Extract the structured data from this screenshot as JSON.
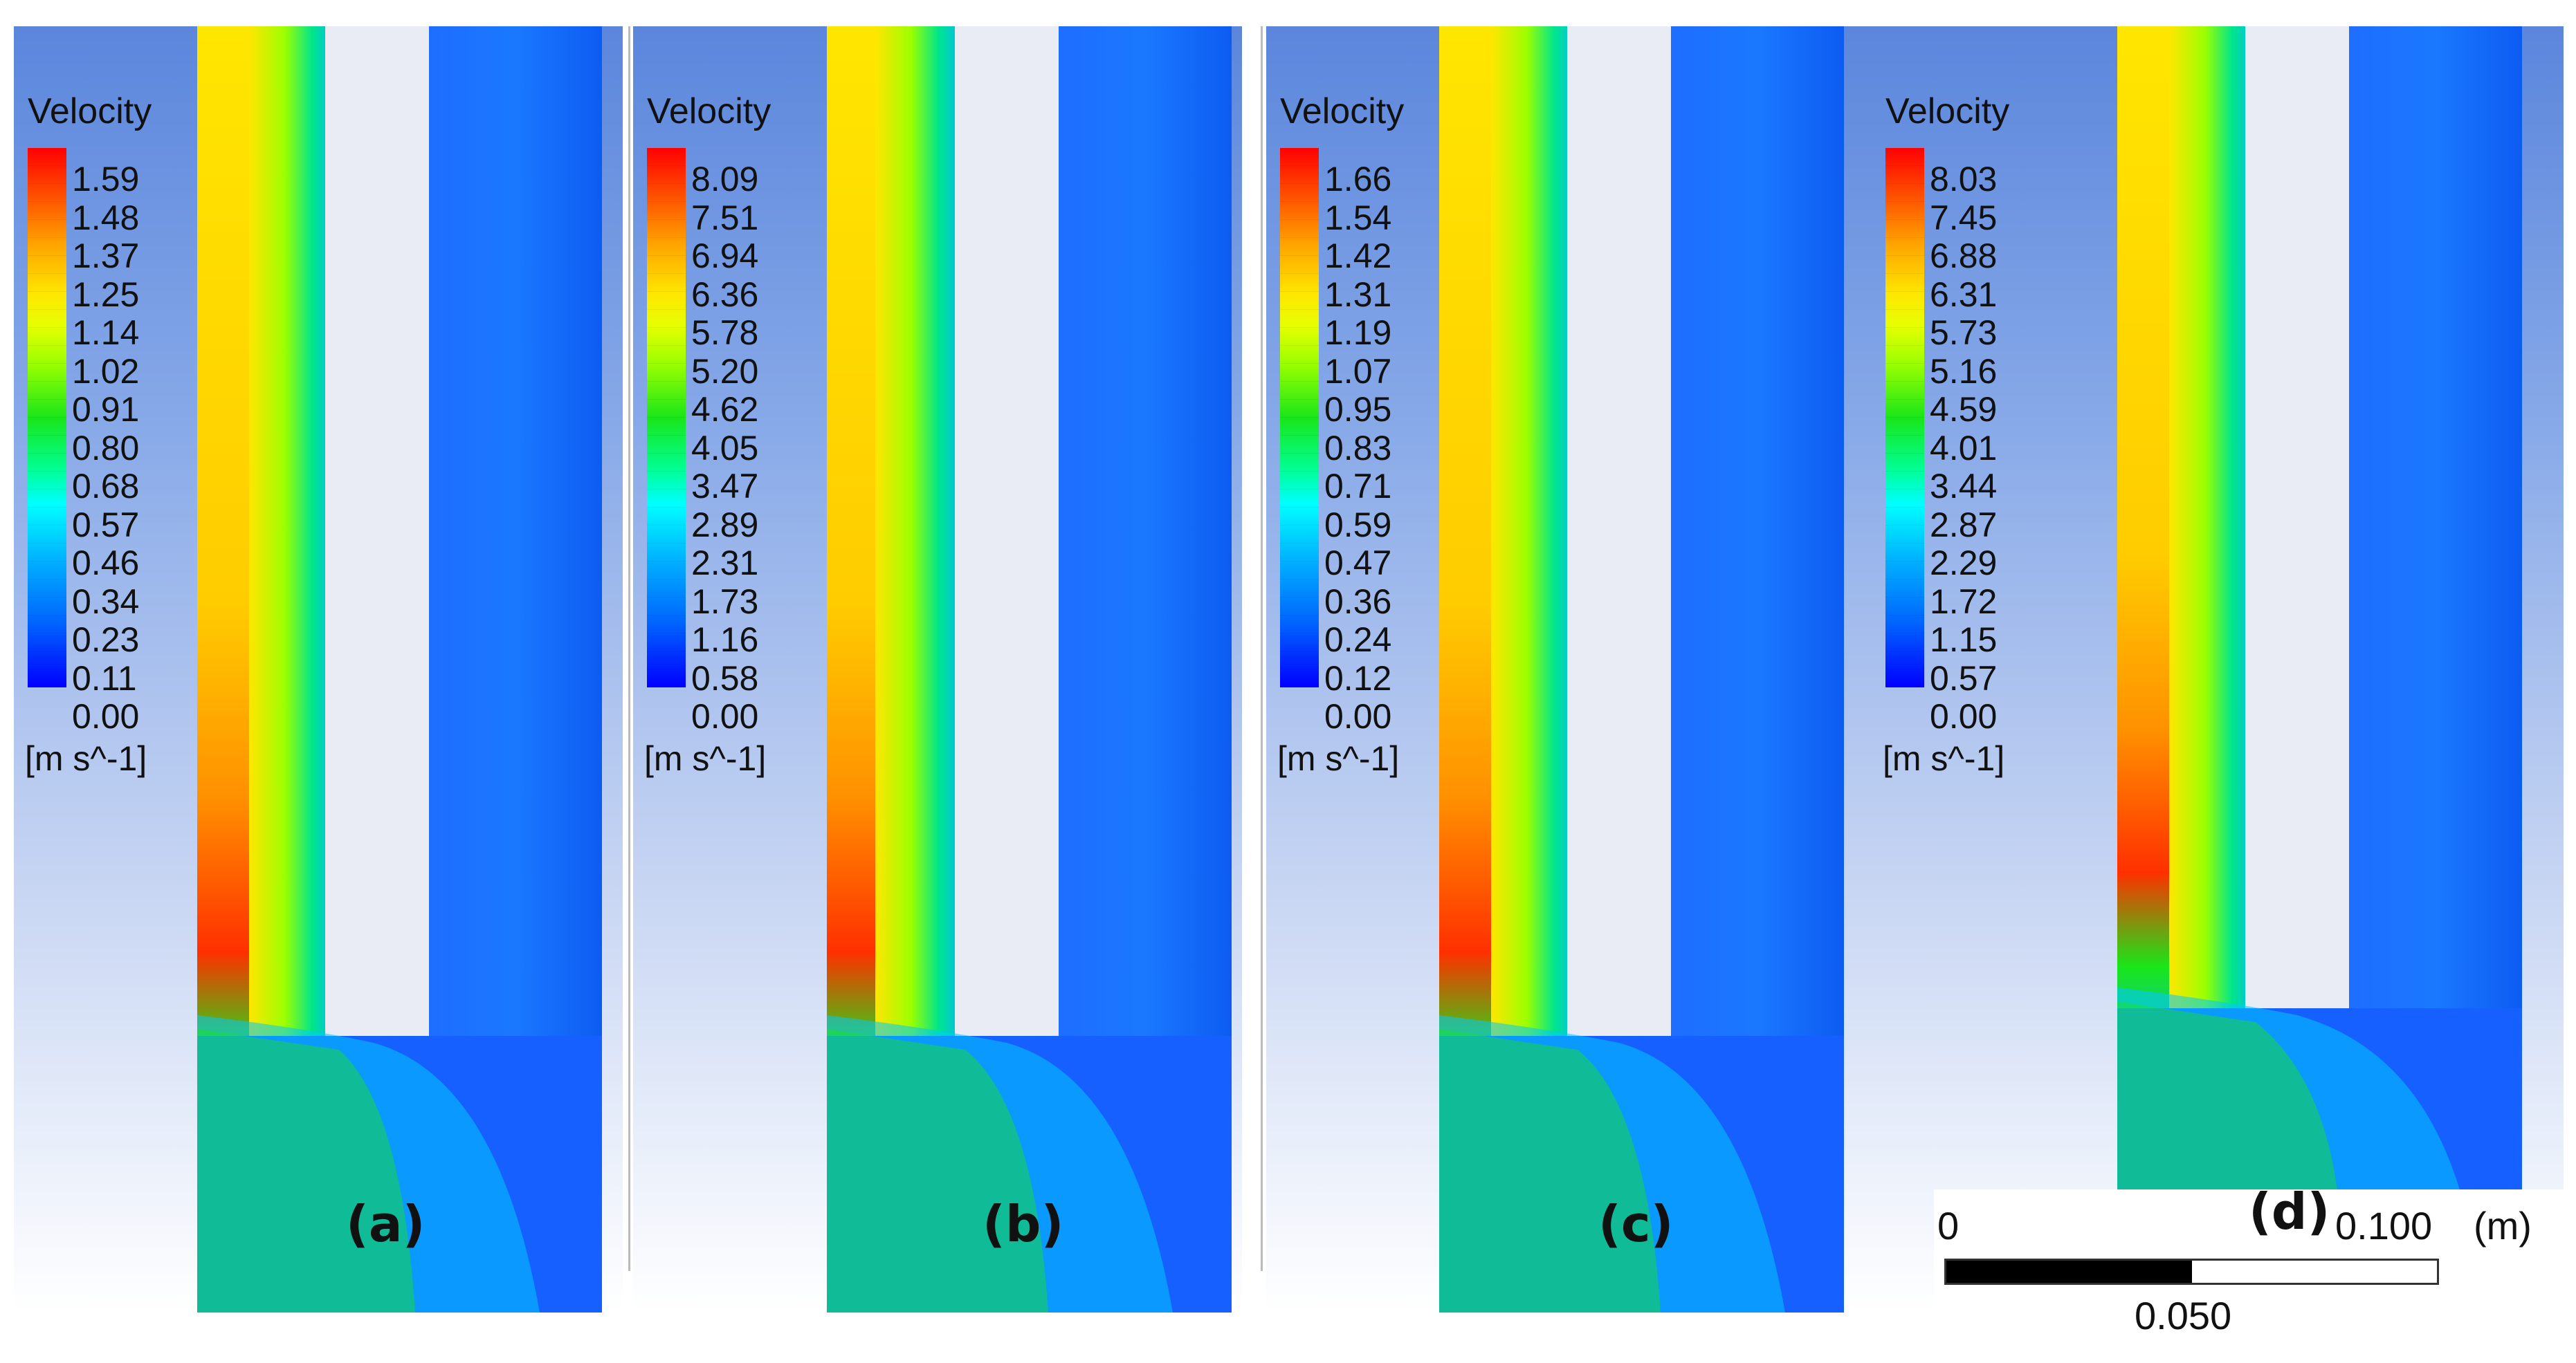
{
  "panels": [
    {
      "label": "(a)",
      "legend_title": "Velocity",
      "unit": "[m s^-1]",
      "ticks": [
        "1.59",
        "1.48",
        "1.37",
        "1.25",
        "1.14",
        "1.02",
        "0.91",
        "0.80",
        "0.68",
        "0.57",
        "0.46",
        "0.34",
        "0.23",
        "0.11",
        "0.00"
      ]
    },
    {
      "label": "(b)",
      "legend_title": "Velocity",
      "unit": "[m s^-1]",
      "ticks": [
        "8.09",
        "7.51",
        "6.94",
        "6.36",
        "5.78",
        "5.20",
        "4.62",
        "4.05",
        "3.47",
        "2.89",
        "2.31",
        "1.73",
        "1.16",
        "0.58",
        "0.00"
      ]
    },
    {
      "label": "(c)",
      "legend_title": "Velocity",
      "unit": "[m s^-1]",
      "ticks": [
        "1.66",
        "1.54",
        "1.42",
        "1.31",
        "1.19",
        "1.07",
        "0.95",
        "0.83",
        "0.71",
        "0.59",
        "0.47",
        "0.36",
        "0.24",
        "0.12",
        "0.00"
      ]
    },
    {
      "label": "(d)",
      "legend_title": "Velocity",
      "unit": "[m s^-1]",
      "ticks": [
        "8.03",
        "7.45",
        "6.88",
        "6.31",
        "5.73",
        "5.16",
        "4.59",
        "4.01",
        "3.44",
        "2.87",
        "2.29",
        "1.72",
        "1.15",
        "0.57",
        "0.00"
      ]
    }
  ],
  "scale": {
    "zero": "0",
    "max": "0.100",
    "unit": "(m)",
    "mid": "0.050"
  },
  "colors": {
    "max": "#ff0000",
    "min": "#0000ff",
    "background_top": "#5b86dc"
  }
}
